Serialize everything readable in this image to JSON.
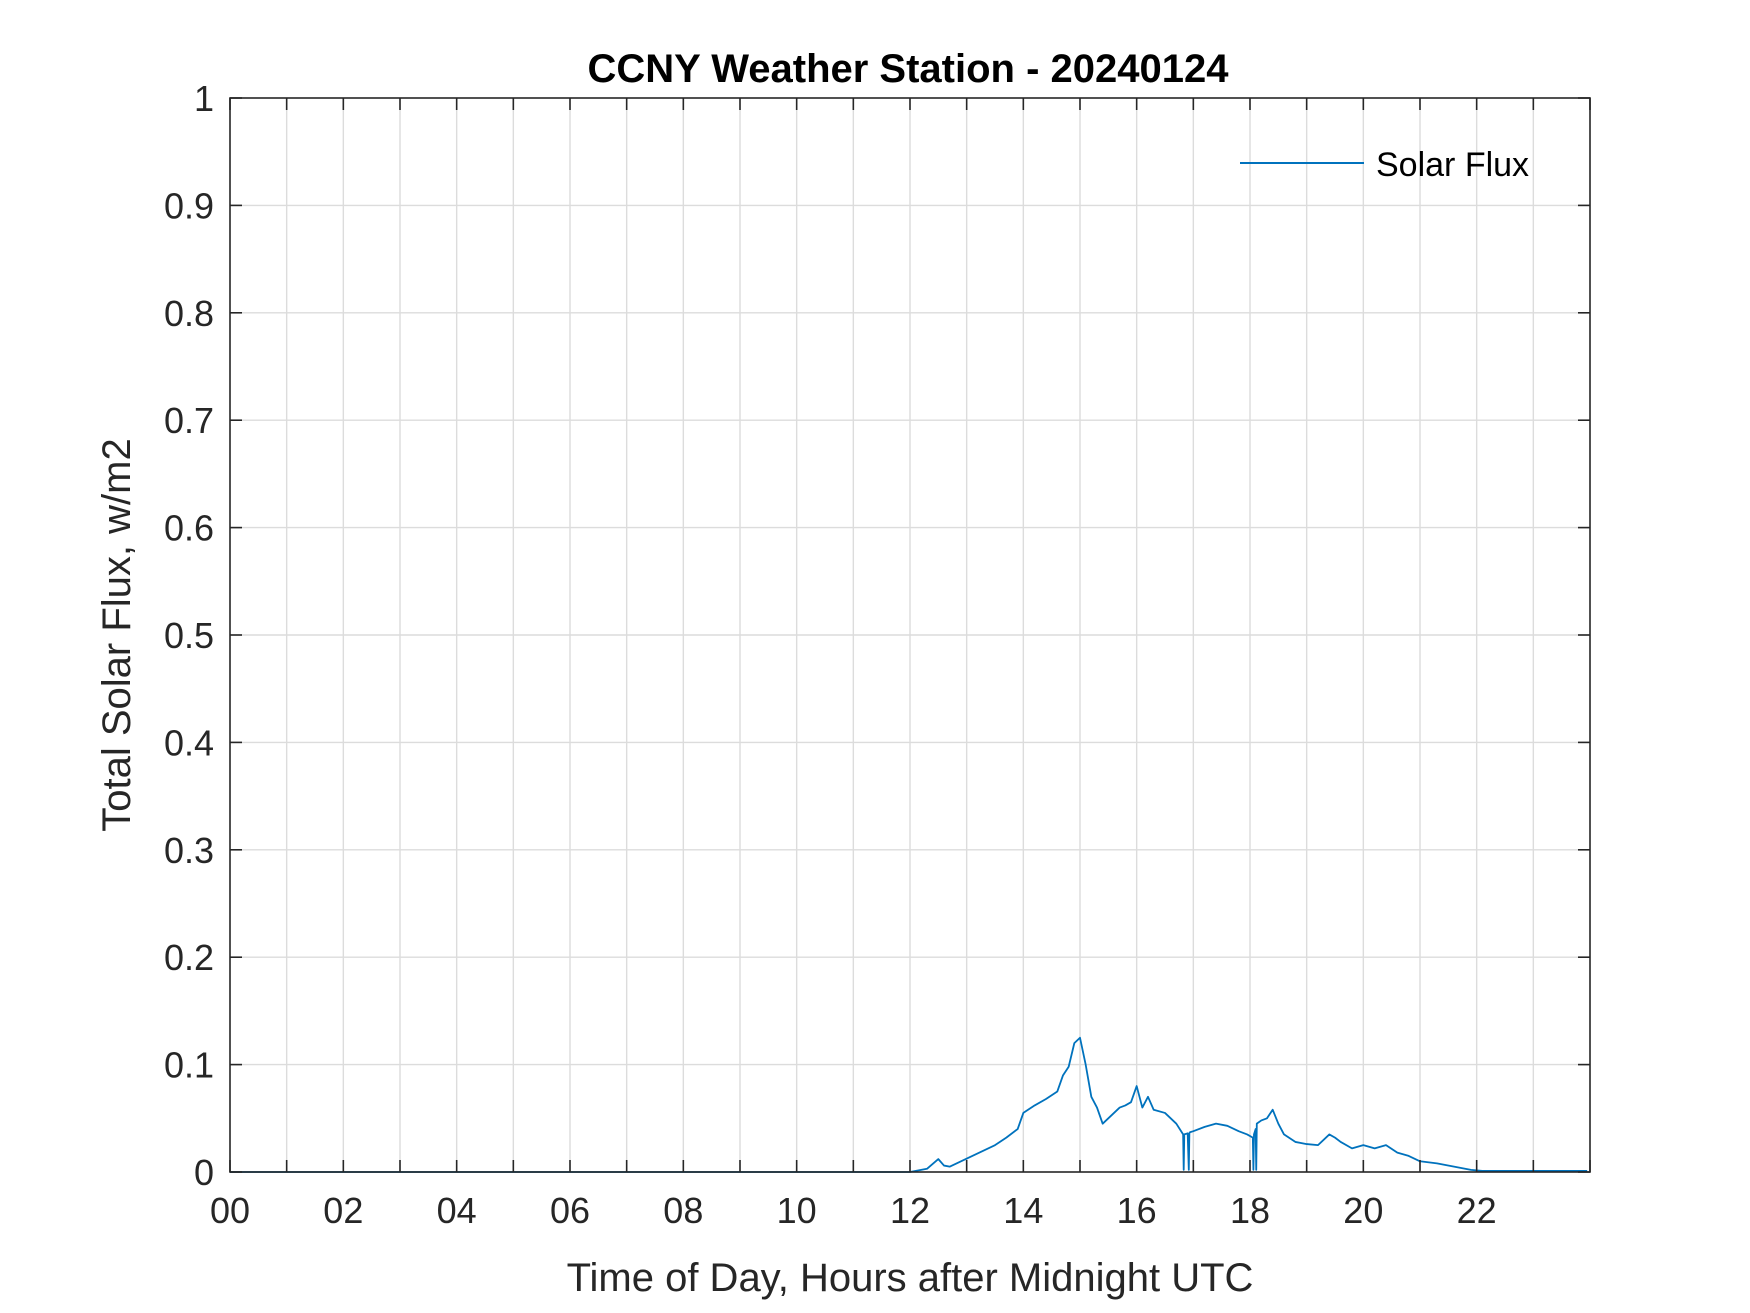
{
  "chart_data": {
    "type": "line",
    "title": "CCNY Weather Station - 20240124",
    "xlabel": "Time of Day, Hours after Midnight UTC",
    "ylabel": "Total Solar Flux, w/m2",
    "xlim": [
      0,
      24
    ],
    "ylim": [
      0,
      1
    ],
    "x_ticks": [
      0,
      2,
      4,
      6,
      8,
      10,
      12,
      14,
      16,
      18,
      20,
      22
    ],
    "x_tick_labels": [
      "00",
      "02",
      "04",
      "06",
      "08",
      "10",
      "12",
      "14",
      "16",
      "18",
      "20",
      "22"
    ],
    "y_ticks": [
      0,
      0.1,
      0.2,
      0.3,
      0.4,
      0.5,
      0.6,
      0.7,
      0.8,
      0.9,
      1
    ],
    "y_tick_labels": [
      "0",
      "0.1",
      "0.2",
      "0.3",
      "0.4",
      "0.5",
      "0.6",
      "0.7",
      "0.8",
      "0.9",
      "1"
    ],
    "grid": true,
    "legend_position": "top-right",
    "series": [
      {
        "name": "Solar Flux",
        "color": "#0072BD",
        "x": [
          0,
          12.0,
          12.3,
          12.5,
          12.6,
          12.7,
          12.9,
          13.1,
          13.3,
          13.5,
          13.7,
          13.9,
          14.0,
          14.2,
          14.4,
          14.6,
          14.7,
          14.8,
          14.9,
          15.0,
          15.1,
          15.2,
          15.3,
          15.4,
          15.5,
          15.6,
          15.7,
          15.8,
          15.9,
          16.0,
          16.1,
          16.2,
          16.3,
          16.5,
          16.7,
          16.82,
          16.83,
          16.84,
          16.9,
          16.92,
          16.93,
          16.94,
          17.0,
          17.2,
          17.4,
          17.6,
          17.8,
          17.95,
          18.05,
          18.06,
          18.07,
          18.1,
          18.11,
          18.12,
          18.2,
          18.3,
          18.4,
          18.5,
          18.6,
          18.8,
          19.0,
          19.2,
          19.4,
          19.5,
          19.6,
          19.8,
          20.0,
          20.2,
          20.4,
          20.6,
          20.8,
          21.0,
          21.3,
          21.6,
          21.9,
          22.1,
          23.95
        ],
        "values": [
          0,
          0,
          0.003,
          0.012,
          0.006,
          0.005,
          0.01,
          0.015,
          0.02,
          0.025,
          0.032,
          0.04,
          0.055,
          0.062,
          0.068,
          0.075,
          0.09,
          0.098,
          0.12,
          0.125,
          0.1,
          0.07,
          0.06,
          0.045,
          0.05,
          0.055,
          0.06,
          0.062,
          0.065,
          0.08,
          0.06,
          0.07,
          0.058,
          0.055,
          0.045,
          0.035,
          0.002,
          0.035,
          0.036,
          0.002,
          0.036,
          0.037,
          0.038,
          0.042,
          0.045,
          0.043,
          0.038,
          0.035,
          0.032,
          0.002,
          0.035,
          0.04,
          0.002,
          0.045,
          0.048,
          0.05,
          0.058,
          0.045,
          0.035,
          0.028,
          0.026,
          0.025,
          0.035,
          0.032,
          0.028,
          0.022,
          0.025,
          0.022,
          0.025,
          0.018,
          0.015,
          0.01,
          0.008,
          0.005,
          0.002,
          0.001,
          0.001
        ]
      }
    ]
  }
}
